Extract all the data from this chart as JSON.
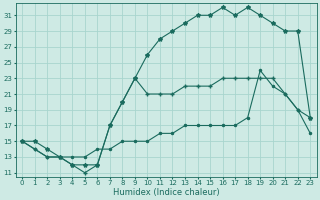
{
  "xlabel": "Humidex (Indice chaleur)",
  "bg_color": "#ceeae4",
  "grid_color": "#a8d5ce",
  "line_color": "#1a6b5e",
  "xlim": [
    -0.5,
    23.5
  ],
  "ylim": [
    10.5,
    32.5
  ],
  "xticks": [
    0,
    1,
    2,
    3,
    4,
    5,
    6,
    7,
    8,
    9,
    10,
    11,
    12,
    13,
    14,
    15,
    16,
    17,
    18,
    19,
    20,
    21,
    22,
    23
  ],
  "yticks": [
    11,
    13,
    15,
    17,
    19,
    21,
    23,
    25,
    27,
    29,
    31
  ],
  "line1_x": [
    0,
    1,
    2,
    3,
    4,
    5,
    6,
    7,
    8,
    9,
    10,
    11,
    12,
    13,
    14,
    15,
    16,
    17,
    18,
    19,
    20,
    21,
    22,
    23
  ],
  "line1_y": [
    15,
    15,
    14,
    13,
    12,
    12,
    12,
    17,
    20,
    23,
    26,
    28,
    29,
    30,
    31,
    31,
    32,
    31,
    32,
    31,
    30,
    29,
    29,
    18
  ],
  "line2_x": [
    0,
    1,
    2,
    3,
    4,
    5,
    6,
    7,
    8,
    9,
    10,
    11,
    12,
    13,
    14,
    15,
    16,
    17,
    18,
    19,
    20,
    21,
    22,
    23
  ],
  "line2_y": [
    15,
    14,
    13,
    13,
    12,
    11,
    12,
    17,
    20,
    23,
    21,
    21,
    21,
    22,
    22,
    22,
    23,
    23,
    23,
    23,
    23,
    21,
    19,
    18
  ],
  "line3_x": [
    0,
    1,
    2,
    3,
    4,
    5,
    6,
    7,
    8,
    9,
    10,
    11,
    12,
    13,
    14,
    15,
    16,
    17,
    18,
    19,
    20,
    21,
    22,
    23
  ],
  "line3_y": [
    15,
    14,
    13,
    13,
    13,
    13,
    14,
    14,
    15,
    15,
    15,
    16,
    16,
    17,
    17,
    17,
    17,
    17,
    18,
    24,
    22,
    21,
    19,
    16
  ]
}
